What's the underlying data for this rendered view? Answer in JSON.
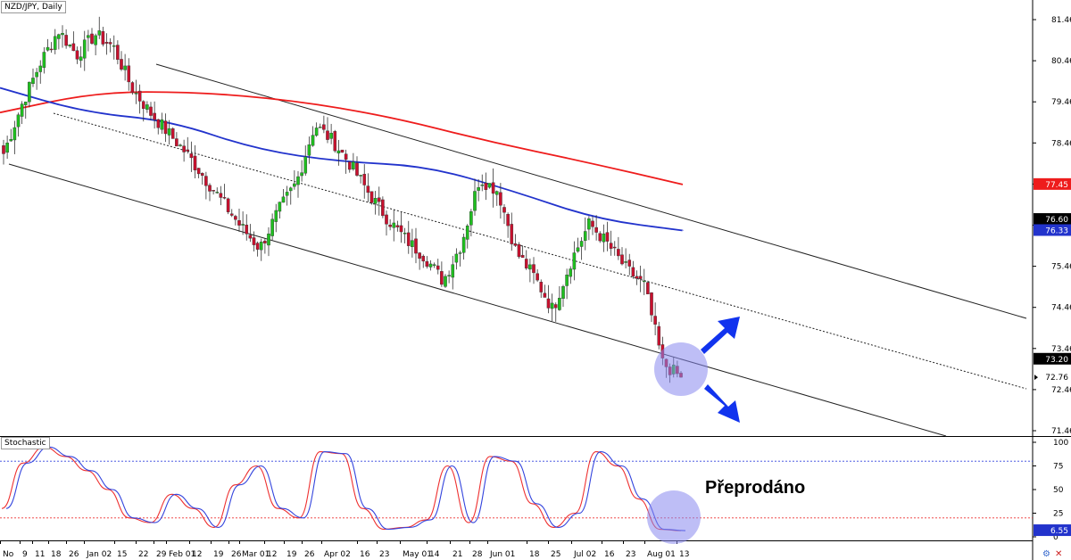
{
  "chart_title": "NZD/JPY, Daily",
  "indicator_title": "Stochastic",
  "annotation": "Přeprodáno",
  "price_axis": {
    "labels": [
      "81.46",
      "80.46",
      "79.46",
      "78.46",
      "77.46",
      "76.46",
      "75.46",
      "74.46",
      "73.46",
      "72.46",
      "71.46"
    ]
  },
  "stoch_axis": {
    "labels": [
      "100",
      "75",
      "50",
      "25",
      "0"
    ]
  },
  "date_axis": {
    "labels": [
      "No",
      "9",
      "11",
      "18",
      "26",
      "Jan 02",
      "15",
      "22",
      "29",
      "Feb 01",
      "12",
      "19",
      "26",
      "Mar 01",
      "12",
      "19",
      "26",
      "Apr 02",
      "16",
      "23",
      "May 01",
      "14",
      "21",
      "28",
      "Jun 01",
      "18",
      "25",
      "Jul 02",
      "16",
      "23",
      "Aug 01",
      "13"
    ]
  },
  "price_tags": {
    "sma200": "77.45",
    "last_high": "76.60",
    "sma100": "76.33",
    "mid_line": "73.20",
    "current": "72.76",
    "stoch_value": "6.55"
  },
  "colors": {
    "up": "#1fbf1f",
    "down": "#c8102e",
    "ma_long": "#ee1c1c",
    "ma_short": "#2233cc",
    "stoch_k": "#ee3030",
    "stoch_d": "#3344dd",
    "highlight": "#8888ee",
    "arrow": "#1133ee"
  },
  "chart_data": {
    "type": "candlestick",
    "symbol": "NZD/JPY",
    "timeframe": "Daily",
    "ylim": [
      71.46,
      81.86
    ],
    "price_series_sampled": [
      78.2,
      79.4,
      80.4,
      81.2,
      80.6,
      81.1,
      80.8,
      79.8,
      79.2,
      78.7,
      78.2,
      77.6,
      77.0,
      76.4,
      75.9,
      76.8,
      77.5,
      78.9,
      78.5,
      77.9,
      77.2,
      76.6,
      76.1,
      75.7,
      75.1,
      76.0,
      77.6,
      77.3,
      75.8,
      75.2,
      74.4,
      75.6,
      76.5,
      76.0,
      75.4,
      75.0,
      73.1,
      72.76
    ],
    "series": [
      {
        "name": "MA long",
        "values": [
          79.2,
          79.7,
          79.7,
          79.5,
          79.1,
          78.5,
          78.0,
          77.45
        ]
      },
      {
        "name": "MA short",
        "values": [
          79.8,
          79.2,
          79.0,
          78.3,
          78.0,
          77.9,
          77.3,
          76.6,
          76.33
        ]
      }
    ],
    "channel": {
      "type": "descending",
      "upper_end": 74.2,
      "mid_end": 72.5,
      "lower_end": 71.3
    },
    "stochastic": {
      "ylim": [
        0,
        100
      ],
      "overbought": 80,
      "oversold": 20,
      "k_sampled": [
        30,
        78,
        95,
        85,
        70,
        50,
        20,
        15,
        45,
        30,
        10,
        55,
        75,
        30,
        20,
        90,
        88,
        30,
        8,
        10,
        18,
        75,
        15,
        85,
        80,
        35,
        10,
        25,
        90,
        75,
        40,
        8,
        6.55
      ]
    }
  }
}
